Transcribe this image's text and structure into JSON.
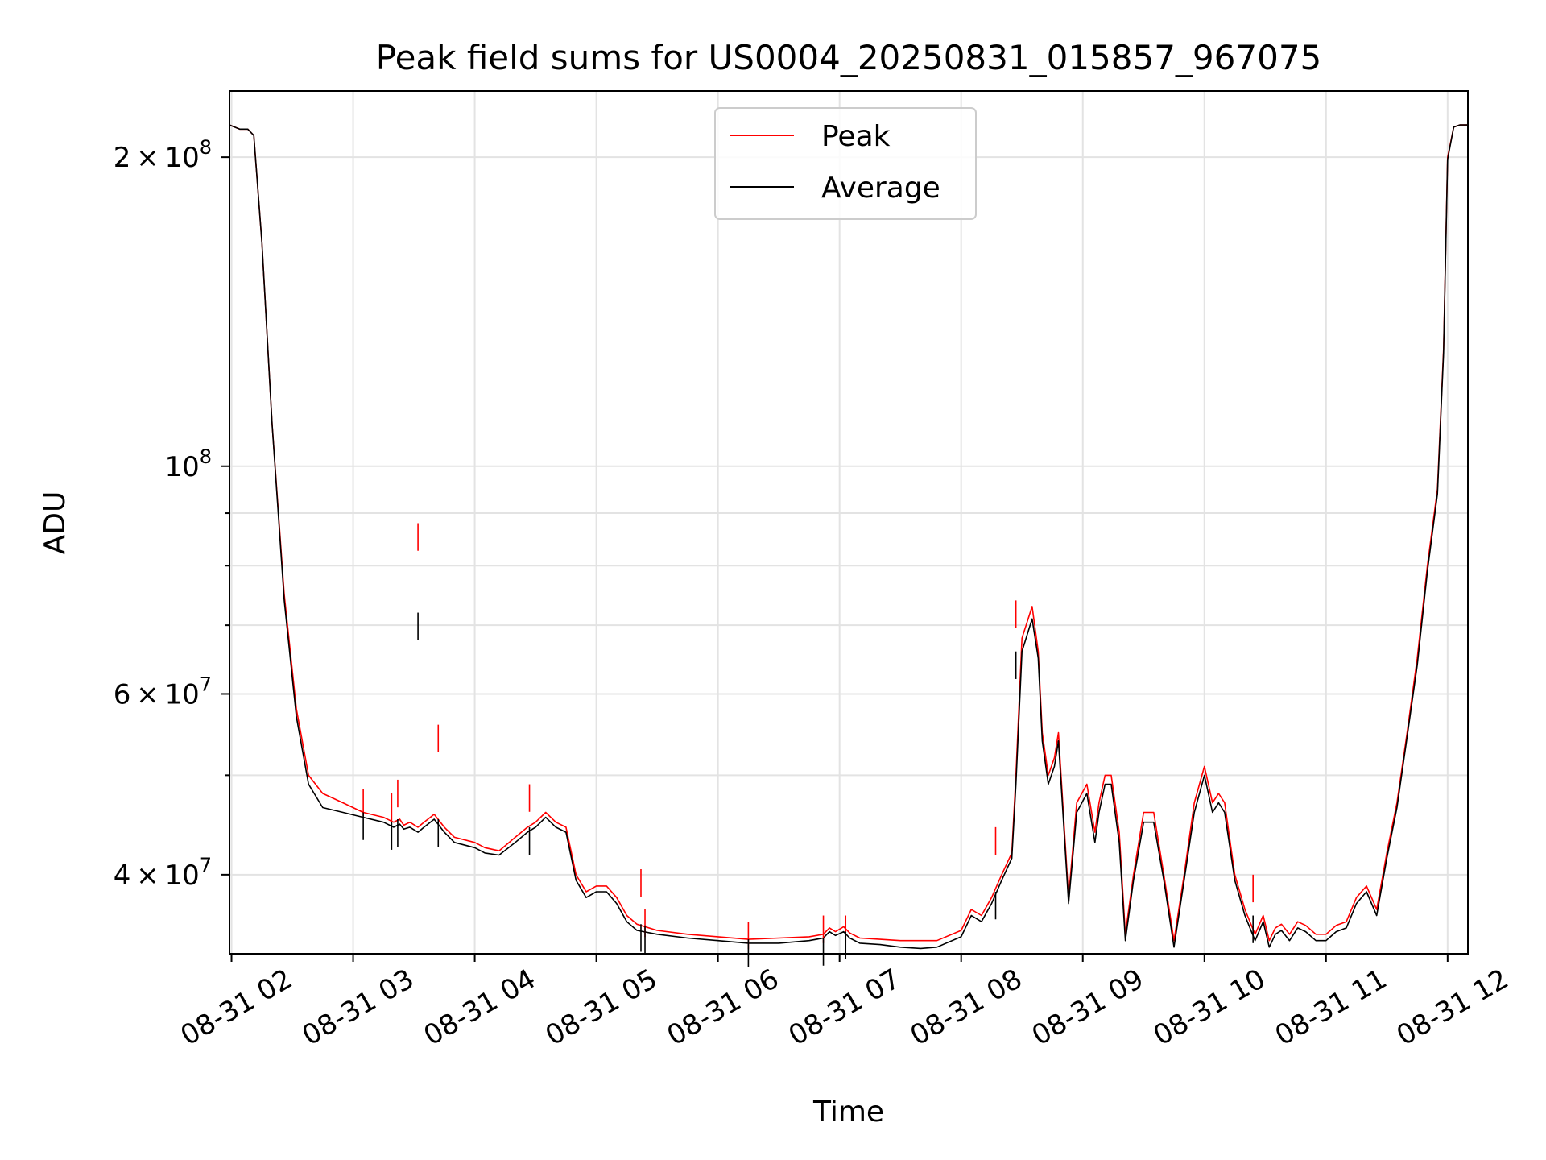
{
  "chart_data": {
    "type": "line",
    "title": "Peak field sums for US0004_20250831_015857_967075",
    "xlabel": "Time",
    "ylabel": "ADU",
    "y_scale": "log",
    "ylim": [
      33500000,
      232000000
    ],
    "xlim": [
      "2025-08-31 01:59",
      "2025-08-31 12:10"
    ],
    "x_ticks": [
      {
        "x": "2025-08-31 02:00",
        "label": "08-31 02"
      },
      {
        "x": "2025-08-31 03:00",
        "label": "08-31 03"
      },
      {
        "x": "2025-08-31 04:00",
        "label": "08-31 04"
      },
      {
        "x": "2025-08-31 05:00",
        "label": "08-31 05"
      },
      {
        "x": "2025-08-31 06:00",
        "label": "08-31 06"
      },
      {
        "x": "2025-08-31 07:00",
        "label": "08-31 07"
      },
      {
        "x": "2025-08-31 08:00",
        "label": "08-31 08"
      },
      {
        "x": "2025-08-31 09:00",
        "label": "08-31 09"
      },
      {
        "x": "2025-08-31 10:00",
        "label": "08-31 10"
      },
      {
        "x": "2025-08-31 11:00",
        "label": "08-31 11"
      },
      {
        "x": "2025-08-31 12:00",
        "label": "08-31 12"
      }
    ],
    "y_major_ticks": [
      {
        "y": 40000000,
        "mant": "4",
        "exp": "7"
      },
      {
        "y": 60000000,
        "mant": "6",
        "exp": "7"
      },
      {
        "y": 100000000,
        "mant": "",
        "exp": "8"
      },
      {
        "y": 200000000,
        "mant": "2",
        "exp": "8"
      }
    ],
    "y_minor_ticks": [
      50000000,
      70000000,
      80000000,
      90000000
    ],
    "grid": true,
    "legend_position": "upper-center",
    "colors": {
      "peak": "#ff0000",
      "average": "#000000",
      "grid": "#e3e3e3"
    },
    "series": [
      {
        "name": "Peak",
        "color": "#ff0000",
        "x": [
          "2025-08-31 01:59",
          "2025-08-31 02:04",
          "2025-08-31 02:08",
          "2025-08-31 02:11",
          "2025-08-31 02:15",
          "2025-08-31 02:20",
          "2025-08-31 02:26",
          "2025-08-31 02:32",
          "2025-08-31 02:38",
          "2025-08-31 02:45",
          "2025-08-31 02:55",
          "2025-08-31 03:05",
          "2025-08-31 03:15",
          "2025-08-31 03:20",
          "2025-08-31 03:23",
          "2025-08-31 03:25",
          "2025-08-31 03:28",
          "2025-08-31 03:32",
          "2025-08-31 03:35",
          "2025-08-31 03:40",
          "2025-08-31 03:45",
          "2025-08-31 03:50",
          "2025-08-31 04:00",
          "2025-08-31 04:05",
          "2025-08-31 04:12",
          "2025-08-31 04:20",
          "2025-08-31 04:26",
          "2025-08-31 04:30",
          "2025-08-31 04:35",
          "2025-08-31 04:40",
          "2025-08-31 04:45",
          "2025-08-31 04:50",
          "2025-08-31 04:55",
          "2025-08-31 05:00",
          "2025-08-31 05:05",
          "2025-08-31 05:10",
          "2025-08-31 05:15",
          "2025-08-31 05:20",
          "2025-08-31 05:30",
          "2025-08-31 05:45",
          "2025-08-31 06:00",
          "2025-08-31 06:15",
          "2025-08-31 06:30",
          "2025-08-31 06:45",
          "2025-08-31 06:52",
          "2025-08-31 06:55",
          "2025-08-31 06:58",
          "2025-08-31 07:02",
          "2025-08-31 07:05",
          "2025-08-31 07:10",
          "2025-08-31 07:20",
          "2025-08-31 07:30",
          "2025-08-31 07:40",
          "2025-08-31 07:48",
          "2025-08-31 08:00",
          "2025-08-31 08:05",
          "2025-08-31 08:10",
          "2025-08-31 08:15",
          "2025-08-31 08:20",
          "2025-08-31 08:25",
          "2025-08-31 08:27",
          "2025-08-31 08:30",
          "2025-08-31 08:35",
          "2025-08-31 08:38",
          "2025-08-31 08:40",
          "2025-08-31 08:43",
          "2025-08-31 08:46",
          "2025-08-31 08:48",
          "2025-08-31 08:53",
          "2025-08-31 08:57",
          "2025-08-31 09:02",
          "2025-08-31 09:06",
          "2025-08-31 09:08",
          "2025-08-31 09:11",
          "2025-08-31 09:14",
          "2025-08-31 09:18",
          "2025-08-31 09:21",
          "2025-08-31 09:25",
          "2025-08-31 09:30",
          "2025-08-31 09:35",
          "2025-08-31 09:40",
          "2025-08-31 09:45",
          "2025-08-31 09:50",
          "2025-08-31 09:55",
          "2025-08-31 10:00",
          "2025-08-31 10:04",
          "2025-08-31 10:07",
          "2025-08-31 10:10",
          "2025-08-31 10:15",
          "2025-08-31 10:20",
          "2025-08-31 10:25",
          "2025-08-31 10:29",
          "2025-08-31 10:32",
          "2025-08-31 10:35",
          "2025-08-31 10:38",
          "2025-08-31 10:42",
          "2025-08-31 10:46",
          "2025-08-31 10:50",
          "2025-08-31 10:55",
          "2025-08-31 11:00",
          "2025-08-31 11:05",
          "2025-08-31 11:10",
          "2025-08-31 11:15",
          "2025-08-31 11:20",
          "2025-08-31 11:25",
          "2025-08-31 11:30",
          "2025-08-31 11:35",
          "2025-08-31 11:40",
          "2025-08-31 11:45",
          "2025-08-31 11:50",
          "2025-08-31 11:55",
          "2025-08-31 11:58",
          "2025-08-31 12:00",
          "2025-08-31 12:03",
          "2025-08-31 12:06",
          "2025-08-31 12:10"
        ],
        "values": [
          215000000,
          213000000,
          213000000,
          210000000,
          165000000,
          110000000,
          75000000,
          58000000,
          50000000,
          48000000,
          47000000,
          46000000,
          45500000,
          45000000,
          45300000,
          44700000,
          45000000,
          44500000,
          45000000,
          45800000,
          44500000,
          43500000,
          43000000,
          42500000,
          42200000,
          43500000,
          44500000,
          45000000,
          46000000,
          45000000,
          44500000,
          40000000,
          38500000,
          39000000,
          39000000,
          38000000,
          36500000,
          35800000,
          35300000,
          35000000,
          34800000,
          34600000,
          34700000,
          34800000,
          35000000,
          35500000,
          35200000,
          35600000,
          35100000,
          34700000,
          34600000,
          34500000,
          34500000,
          34500000,
          35300000,
          37000000,
          36500000,
          38000000,
          40000000,
          42000000,
          50000000,
          68000000,
          73000000,
          66000000,
          55000000,
          50000000,
          52000000,
          55000000,
          38000000,
          47000000,
          49000000,
          44000000,
          47000000,
          50000000,
          50000000,
          44000000,
          35000000,
          40000000,
          46000000,
          46000000,
          40000000,
          34500000,
          40000000,
          47000000,
          51000000,
          47000000,
          48000000,
          47000000,
          40000000,
          37000000,
          35000000,
          36500000,
          34500000,
          35500000,
          35800000,
          35000000,
          36000000,
          35700000,
          35000000,
          35000000,
          35700000,
          36000000,
          38000000,
          39000000,
          37000000,
          42000000,
          47000000,
          55000000,
          65000000,
          80000000,
          95000000,
          130000000,
          200000000,
          214000000,
          215000000,
          215000000
        ]
      },
      {
        "name": "Average",
        "color": "#000000",
        "x": [
          "2025-08-31 01:59",
          "2025-08-31 02:04",
          "2025-08-31 02:08",
          "2025-08-31 02:11",
          "2025-08-31 02:15",
          "2025-08-31 02:20",
          "2025-08-31 02:26",
          "2025-08-31 02:32",
          "2025-08-31 02:38",
          "2025-08-31 02:45",
          "2025-08-31 02:55",
          "2025-08-31 03:05",
          "2025-08-31 03:15",
          "2025-08-31 03:20",
          "2025-08-31 03:23",
          "2025-08-31 03:25",
          "2025-08-31 03:28",
          "2025-08-31 03:32",
          "2025-08-31 03:35",
          "2025-08-31 03:40",
          "2025-08-31 03:45",
          "2025-08-31 03:50",
          "2025-08-31 04:00",
          "2025-08-31 04:05",
          "2025-08-31 04:12",
          "2025-08-31 04:20",
          "2025-08-31 04:26",
          "2025-08-31 04:30",
          "2025-08-31 04:35",
          "2025-08-31 04:40",
          "2025-08-31 04:45",
          "2025-08-31 04:50",
          "2025-08-31 04:55",
          "2025-08-31 05:00",
          "2025-08-31 05:05",
          "2025-08-31 05:10",
          "2025-08-31 05:15",
          "2025-08-31 05:20",
          "2025-08-31 05:30",
          "2025-08-31 05:45",
          "2025-08-31 06:00",
          "2025-08-31 06:15",
          "2025-08-31 06:30",
          "2025-08-31 06:45",
          "2025-08-31 06:52",
          "2025-08-31 06:55",
          "2025-08-31 06:58",
          "2025-08-31 07:02",
          "2025-08-31 07:05",
          "2025-08-31 07:10",
          "2025-08-31 07:20",
          "2025-08-31 07:30",
          "2025-08-31 07:40",
          "2025-08-31 07:48",
          "2025-08-31 08:00",
          "2025-08-31 08:05",
          "2025-08-31 08:10",
          "2025-08-31 08:15",
          "2025-08-31 08:20",
          "2025-08-31 08:25",
          "2025-08-31 08:27",
          "2025-08-31 08:30",
          "2025-08-31 08:35",
          "2025-08-31 08:38",
          "2025-08-31 08:40",
          "2025-08-31 08:43",
          "2025-08-31 08:46",
          "2025-08-31 08:48",
          "2025-08-31 08:53",
          "2025-08-31 08:57",
          "2025-08-31 09:02",
          "2025-08-31 09:06",
          "2025-08-31 09:08",
          "2025-08-31 09:11",
          "2025-08-31 09:14",
          "2025-08-31 09:18",
          "2025-08-31 09:21",
          "2025-08-31 09:25",
          "2025-08-31 09:30",
          "2025-08-31 09:35",
          "2025-08-31 09:40",
          "2025-08-31 09:45",
          "2025-08-31 09:50",
          "2025-08-31 09:55",
          "2025-08-31 10:00",
          "2025-08-31 10:04",
          "2025-08-31 10:07",
          "2025-08-31 10:10",
          "2025-08-31 10:15",
          "2025-08-31 10:20",
          "2025-08-31 10:25",
          "2025-08-31 10:29",
          "2025-08-31 10:32",
          "2025-08-31 10:35",
          "2025-08-31 10:38",
          "2025-08-31 10:42",
          "2025-08-31 10:46",
          "2025-08-31 10:50",
          "2025-08-31 10:55",
          "2025-08-31 11:00",
          "2025-08-31 11:05",
          "2025-08-31 11:10",
          "2025-08-31 11:15",
          "2025-08-31 11:20",
          "2025-08-31 11:25",
          "2025-08-31 11:30",
          "2025-08-31 11:35",
          "2025-08-31 11:40",
          "2025-08-31 11:45",
          "2025-08-31 11:50",
          "2025-08-31 11:55",
          "2025-08-31 11:58",
          "2025-08-31 12:00",
          "2025-08-31 12:03",
          "2025-08-31 12:06",
          "2025-08-31 12:10"
        ],
        "values": [
          215000000,
          213000000,
          213000000,
          210000000,
          165000000,
          110000000,
          74000000,
          57000000,
          49000000,
          46500000,
          46000000,
          45500000,
          45000000,
          44500000,
          44800000,
          44300000,
          44500000,
          44000000,
          44500000,
          45300000,
          44000000,
          43000000,
          42500000,
          42000000,
          41800000,
          43000000,
          44000000,
          44500000,
          45500000,
          44500000,
          44000000,
          39500000,
          38000000,
          38500000,
          38500000,
          37500000,
          36000000,
          35300000,
          35000000,
          34700000,
          34500000,
          34300000,
          34300000,
          34500000,
          34700000,
          35200000,
          34900000,
          35200000,
          34700000,
          34300000,
          34200000,
          34000000,
          33900000,
          34000000,
          34800000,
          36500000,
          36000000,
          37500000,
          39500000,
          41500000,
          49000000,
          66000000,
          71000000,
          65000000,
          54000000,
          49000000,
          51000000,
          54000000,
          37500000,
          46000000,
          48000000,
          43000000,
          46000000,
          49000000,
          49000000,
          43000000,
          34500000,
          39500000,
          45000000,
          45000000,
          39500000,
          34000000,
          39500000,
          46000000,
          50000000,
          46000000,
          47000000,
          46000000,
          39500000,
          36500000,
          34500000,
          36000000,
          34000000,
          35000000,
          35300000,
          34500000,
          35500000,
          35200000,
          34500000,
          34500000,
          35200000,
          35500000,
          37500000,
          38500000,
          36500000,
          41500000,
          46500000,
          54500000,
          64000000,
          79000000,
          94000000,
          129000000,
          199000000,
          214000000,
          215000000,
          215000000
        ]
      }
    ],
    "spikes": [
      {
        "x": "2025-08-31 03:05",
        "peak": 48500000,
        "average": 46000000
      },
      {
        "x": "2025-08-31 03:19",
        "peak": 48000000,
        "average": 45000000
      },
      {
        "x": "2025-08-31 03:22",
        "peak": 49500000,
        "average": 45300000
      },
      {
        "x": "2025-08-31 03:32",
        "peak": 88000000,
        "average": 72000000
      },
      {
        "x": "2025-08-31 03:42",
        "peak": 56000000,
        "average": 45300000
      },
      {
        "x": "2025-08-31 04:27",
        "peak": 49000000,
        "average": 44500000
      },
      {
        "x": "2025-08-31 05:22",
        "peak": 40500000,
        "average": 35800000
      },
      {
        "x": "2025-08-31 05:24",
        "peak": 37000000,
        "average": 35700000
      },
      {
        "x": "2025-08-31 06:15",
        "peak": 36000000,
        "average": 34600000
      },
      {
        "x": "2025-08-31 06:52",
        "peak": 36500000,
        "average": 34700000
      },
      {
        "x": "2025-08-31 07:03",
        "peak": 36500000,
        "average": 35200000
      },
      {
        "x": "2025-08-31 08:17",
        "peak": 44500000,
        "average": 38500000
      },
      {
        "x": "2025-08-31 08:27",
        "peak": 74000000,
        "average": 66000000
      },
      {
        "x": "2025-08-31 10:24",
        "peak": 40000000,
        "average": 36500000
      }
    ]
  }
}
